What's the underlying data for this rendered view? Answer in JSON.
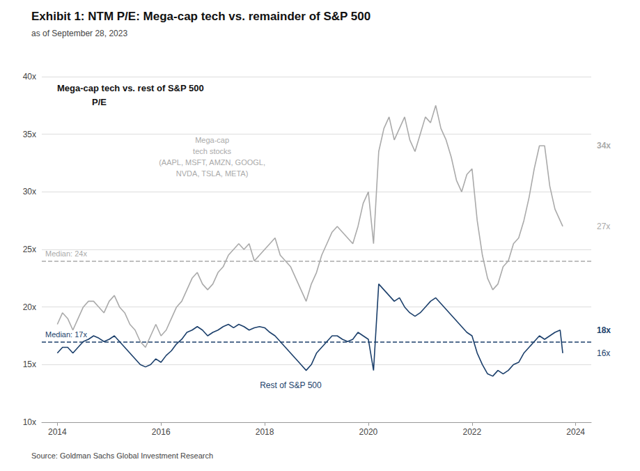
{
  "chart_data": {
    "type": "line",
    "title": "Exhibit 1: NTM P/E: Mega-cap tech vs. remainder of S&P 500",
    "subtitle": "as of September 28, 2023",
    "source": "Source: Goldman Sachs Global Investment Research",
    "inner_title": [
      "Mega-cap tech vs. rest of S&P 500",
      "P/E"
    ],
    "x": [
      2014.0,
      2014.1,
      2014.2,
      2014.3,
      2014.4,
      2014.5,
      2014.6,
      2014.7,
      2014.8,
      2014.9,
      2015.0,
      2015.1,
      2015.2,
      2015.3,
      2015.4,
      2015.5,
      2015.6,
      2015.7,
      2015.8,
      2015.9,
      2016.0,
      2016.1,
      2016.2,
      2016.3,
      2016.4,
      2016.5,
      2016.6,
      2016.7,
      2016.8,
      2016.9,
      2017.0,
      2017.1,
      2017.2,
      2017.3,
      2017.4,
      2017.5,
      2017.6,
      2017.7,
      2017.8,
      2017.9,
      2018.0,
      2018.1,
      2018.2,
      2018.3,
      2018.4,
      2018.5,
      2018.6,
      2018.7,
      2018.8,
      2018.9,
      2019.0,
      2019.1,
      2019.2,
      2019.3,
      2019.4,
      2019.5,
      2019.6,
      2019.7,
      2019.8,
      2019.9,
      2020.0,
      2020.1,
      2020.2,
      2020.3,
      2020.4,
      2020.5,
      2020.6,
      2020.7,
      2020.8,
      2020.9,
      2021.0,
      2021.1,
      2021.2,
      2021.3,
      2021.4,
      2021.5,
      2021.6,
      2021.7,
      2021.8,
      2021.9,
      2022.0,
      2022.1,
      2022.2,
      2022.3,
      2022.4,
      2022.5,
      2022.6,
      2022.7,
      2022.8,
      2022.9,
      2023.0,
      2023.1,
      2023.2,
      2023.3,
      2023.4,
      2023.5,
      2023.6,
      2023.7,
      2023.75
    ],
    "series": [
      {
        "label": "Mega-cap\ntech stocks\n(AAPL, MSFT, AMZN, GOOGL,\nNVDA, TSLA, META)",
        "color": "#aaaaaa",
        "values": [
          18.5,
          19.5,
          19.0,
          18.0,
          19.0,
          20.0,
          20.5,
          20.5,
          20.0,
          19.5,
          20.5,
          21.0,
          20.0,
          19.5,
          18.5,
          18.0,
          17.0,
          16.5,
          17.5,
          18.5,
          17.5,
          18.0,
          19.0,
          20.0,
          20.5,
          21.5,
          22.5,
          23.0,
          22.0,
          21.5,
          22.0,
          23.0,
          23.5,
          24.5,
          25.0,
          25.5,
          25.0,
          25.5,
          24.0,
          24.5,
          25.0,
          25.5,
          26.0,
          24.5,
          24.0,
          23.5,
          22.5,
          21.5,
          20.5,
          22.0,
          23.0,
          24.5,
          25.5,
          26.5,
          27.0,
          26.5,
          26.0,
          25.5,
          27.0,
          29.0,
          30.0,
          25.5,
          33.5,
          35.5,
          36.5,
          34.5,
          35.5,
          36.5,
          34.5,
          33.5,
          35.0,
          36.5,
          36.0,
          37.5,
          35.5,
          34.5,
          33.0,
          31.0,
          30.0,
          31.5,
          32.0,
          27.5,
          24.5,
          22.5,
          21.5,
          22.0,
          23.5,
          24.0,
          25.5,
          26.0,
          27.5,
          29.5,
          32.0,
          34.0,
          34.0,
          30.5,
          28.5,
          27.5,
          27.0
        ],
        "median": 24,
        "median_label": "Median: 24x",
        "end_labels": [
          {
            "value": 34,
            "label": "34x"
          },
          {
            "value": 27,
            "label": "27x"
          }
        ]
      },
      {
        "label": "Rest of S&P 500",
        "color": "#1b3f6b",
        "values": [
          16.0,
          16.5,
          16.5,
          16.0,
          16.5,
          17.0,
          17.2,
          17.5,
          17.3,
          17.0,
          17.2,
          17.5,
          17.0,
          16.5,
          16.0,
          15.5,
          15.0,
          14.8,
          15.0,
          15.5,
          15.2,
          15.8,
          16.2,
          16.8,
          17.2,
          17.8,
          18.0,
          18.3,
          18.0,
          17.5,
          17.8,
          18.0,
          18.3,
          18.5,
          18.2,
          18.5,
          18.3,
          18.0,
          18.2,
          18.3,
          18.2,
          17.8,
          17.5,
          17.0,
          16.5,
          16.0,
          15.5,
          15.0,
          14.5,
          15.0,
          16.0,
          16.5,
          17.0,
          17.5,
          17.5,
          17.2,
          17.0,
          17.2,
          17.8,
          17.5,
          17.2,
          14.5,
          22.0,
          21.5,
          21.0,
          20.5,
          20.8,
          20.0,
          19.5,
          19.2,
          19.5,
          20.0,
          20.5,
          20.8,
          20.3,
          19.8,
          19.3,
          18.8,
          18.3,
          17.8,
          17.5,
          16.0,
          15.0,
          14.2,
          14.0,
          14.5,
          14.2,
          14.5,
          15.0,
          15.2,
          16.0,
          16.5,
          17.0,
          17.5,
          17.2,
          17.5,
          17.8,
          18.0,
          16.0
        ],
        "median": 17,
        "median_label": "Median: 17x",
        "end_labels": [
          {
            "value": 18,
            "label": "18x"
          },
          {
            "value": 16,
            "label": "16x"
          }
        ]
      }
    ],
    "xlim": [
      2013.7,
      2024.3
    ],
    "xticks": [
      2014,
      2016,
      2018,
      2020,
      2022,
      2024
    ],
    "ylim": [
      10,
      40
    ],
    "yticks": [
      {
        "value": 10,
        "label": "10x"
      },
      {
        "value": 15,
        "label": "15x"
      },
      {
        "value": 20,
        "label": "20x"
      },
      {
        "value": 25,
        "label": "25x"
      },
      {
        "value": 30,
        "label": "30x"
      },
      {
        "value": 35,
        "label": "35x"
      },
      {
        "value": 40,
        "label": "40x"
      }
    ],
    "grid": true
  }
}
